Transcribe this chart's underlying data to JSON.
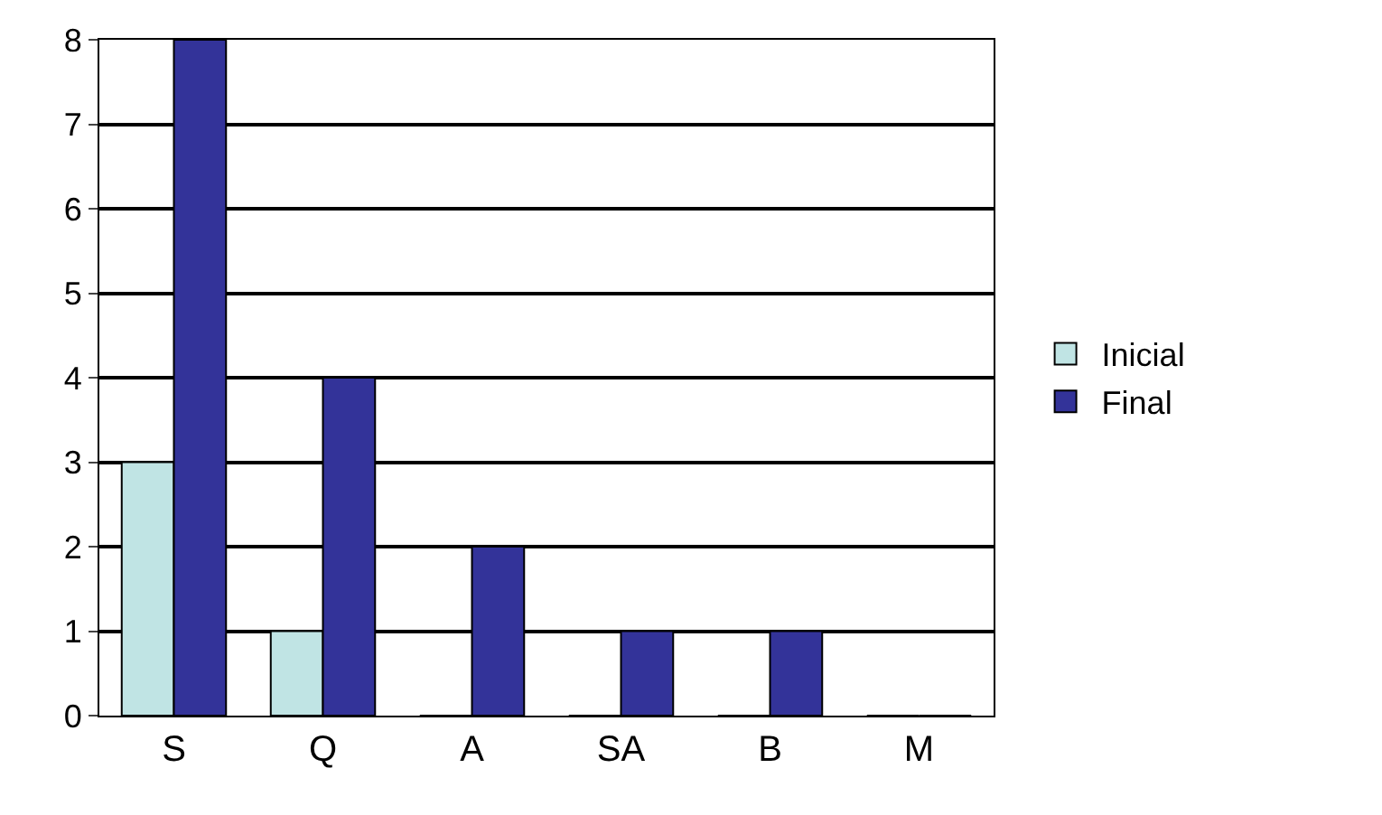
{
  "chart_data": {
    "type": "bar",
    "categories": [
      "S",
      "Q",
      "A",
      "SA",
      "B",
      "M"
    ],
    "series": [
      {
        "name": "Inicial",
        "color": "#c0e4e4",
        "values": [
          3,
          1,
          0,
          0,
          0,
          0
        ]
      },
      {
        "name": "Final",
        "color": "#333399",
        "values": [
          8,
          4,
          2,
          1,
          1,
          0
        ]
      }
    ],
    "ylim": [
      0,
      8
    ],
    "yticks": [
      0,
      1,
      2,
      3,
      4,
      5,
      6,
      7,
      8
    ],
    "grid": "y",
    "legend": "right"
  }
}
